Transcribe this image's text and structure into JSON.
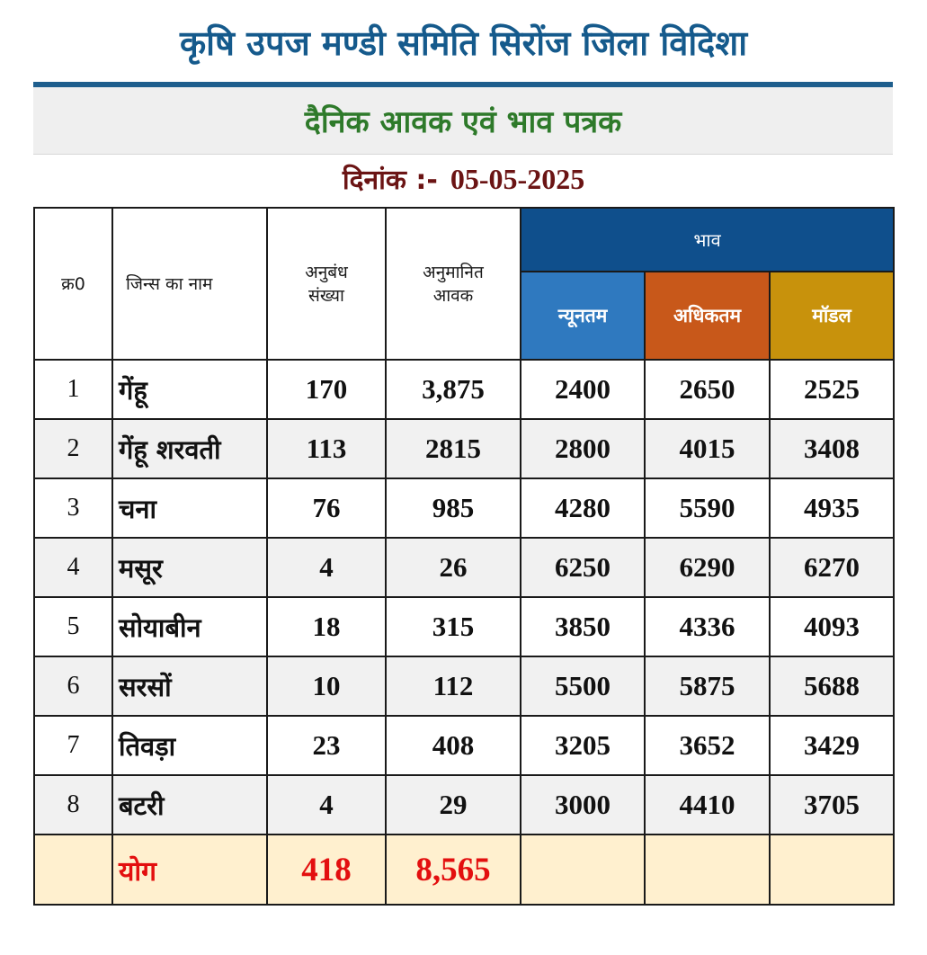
{
  "header": {
    "org_title": "कृषि उपज मण्डी समिति सिरोंज जिला विदिशा",
    "subtitle": "दैनिक आवक एवं भाव पत्रक",
    "date_label": "दिनांक :-",
    "date_value": "05-05-2025"
  },
  "colors": {
    "title_blue": "#155a8c",
    "subtitle_green": "#2e7a2a",
    "date_maroon": "#6b1414",
    "header_blue": "#0f4f8c",
    "min_blue": "#2f79bf",
    "max_orange": "#c8581a",
    "modal_gold": "#c8920c",
    "total_red": "#e30f0f",
    "total_bg": "#fff0cf"
  },
  "table": {
    "columns": {
      "sr": "क्र0",
      "crop": "जिन्स का नाम",
      "contracts": [
        "अनुबंध",
        "संख्या"
      ],
      "arrival": [
        "अनुमानित",
        "आवक"
      ],
      "price_group": "भाव",
      "min": "न्यूनतम",
      "max": "अधिकतम",
      "modal": "मॉडल"
    },
    "rows": [
      {
        "sr": "1",
        "crop": "गेंहू",
        "contracts": "170",
        "arrival": "3,875",
        "min": "2400",
        "max": "2650",
        "modal": "2525"
      },
      {
        "sr": "2",
        "crop": "गेंहू शरवती",
        "contracts": "113",
        "arrival": "2815",
        "min": "2800",
        "max": "4015",
        "modal": "3408"
      },
      {
        "sr": "3",
        "crop": "चना",
        "contracts": "76",
        "arrival": "985",
        "min": "4280",
        "max": "5590",
        "modal": "4935"
      },
      {
        "sr": "4",
        "crop": "मसूर",
        "contracts": "4",
        "arrival": "26",
        "min": "6250",
        "max": "6290",
        "modal": "6270"
      },
      {
        "sr": "5",
        "crop": "सोयाबीन",
        "contracts": "18",
        "arrival": "315",
        "min": "3850",
        "max": "4336",
        "modal": "4093"
      },
      {
        "sr": "6",
        "crop": "सरसों",
        "contracts": "10",
        "arrival": "112",
        "min": "5500",
        "max": "5875",
        "modal": "5688"
      },
      {
        "sr": "7",
        "crop": "तिवड़ा",
        "contracts": "23",
        "arrival": "408",
        "min": "3205",
        "max": "3652",
        "modal": "3429"
      },
      {
        "sr": "8",
        "crop": "बटरी",
        "contracts": "4",
        "arrival": "29",
        "min": "3000",
        "max": "4410",
        "modal": "3705"
      }
    ],
    "total": {
      "label": "योग",
      "contracts": "418",
      "arrival": "8,565"
    }
  }
}
